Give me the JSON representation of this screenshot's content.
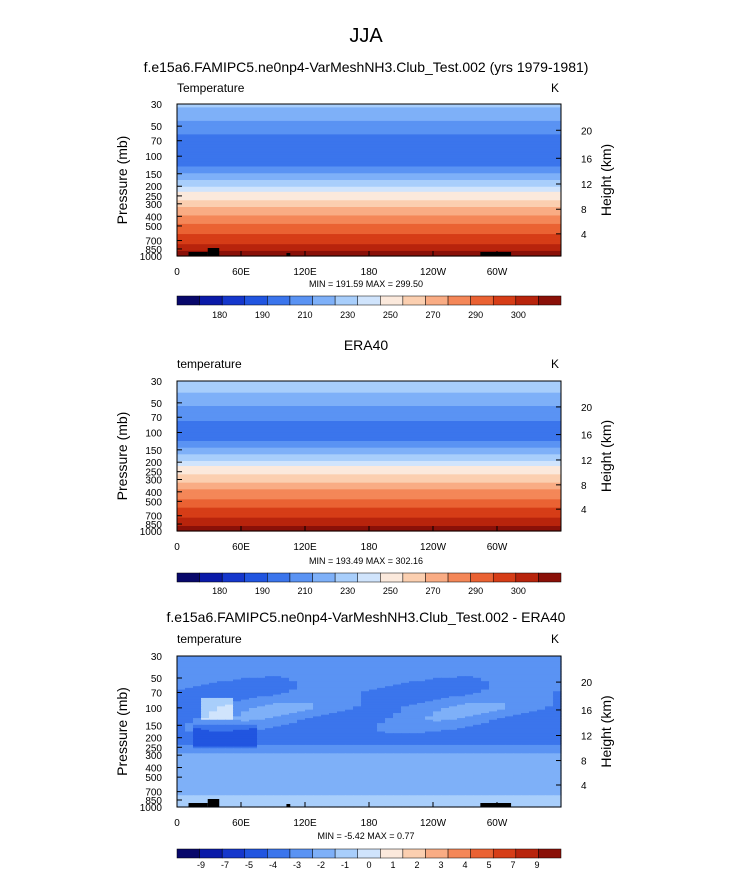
{
  "page": {
    "title": "JJA"
  },
  "colors": {
    "temp_palette": [
      "#08086b",
      "#0a1aa8",
      "#1537cc",
      "#2155e0",
      "#3b75ec",
      "#5a93f3",
      "#7eb0f8",
      "#a8cefb",
      "#d0e4fc",
      "#fbe9dc",
      "#fbcfb0",
      "#f9ac84",
      "#f48758",
      "#ea6233",
      "#d63d17",
      "#b8240c",
      "#8a1008"
    ],
    "diff_palette": [
      "#08086b",
      "#0a1aa8",
      "#1537cc",
      "#2155e0",
      "#3b75ec",
      "#5a93f3",
      "#7eb0f8",
      "#a8cefb",
      "#d0e4fc",
      "#fbe9dc",
      "#fbcfb0",
      "#f9ac84",
      "#f48758",
      "#ea6233",
      "#d63d17",
      "#b8240c",
      "#8a1008"
    ],
    "topography": "#000000"
  },
  "chart_data": [
    {
      "type": "heatmap",
      "title": "f.e15a6.FAMIPC5.ne0np4-VarMeshNH3.Club_Test.002 (yrs 1979-1981)",
      "left_label": "Temperature",
      "units": "K",
      "ylabel": "Pressure (mb)",
      "ylabel_right": "Height (km)",
      "x_ticks": [
        "0",
        "60E",
        "120E",
        "180",
        "120W",
        "60W"
      ],
      "y_ticks": [
        "30",
        "50",
        "70",
        "100",
        "150",
        "200",
        "250",
        "300",
        "400",
        "500",
        "700",
        "850",
        "1000"
      ],
      "y_ticks_right": [
        "20",
        "16",
        "12",
        "8",
        "4"
      ],
      "stats": "MIN = 191.59  MAX = 299.50",
      "colorbar_labels": [
        "180",
        "190",
        "210",
        "230",
        "250",
        "270",
        "290",
        "300"
      ],
      "profile": [
        {
          "p": 30,
          "v": 211
        },
        {
          "p": 40,
          "v": 207
        },
        {
          "p": 50,
          "v": 203
        },
        {
          "p": 60,
          "v": 200
        },
        {
          "p": 70,
          "v": 198
        },
        {
          "p": 85,
          "v": 196
        },
        {
          "p": 100,
          "v": 196
        },
        {
          "p": 120,
          "v": 198
        },
        {
          "p": 150,
          "v": 205
        },
        {
          "p": 200,
          "v": 214
        },
        {
          "p": 250,
          "v": 225
        },
        {
          "p": 300,
          "v": 235
        },
        {
          "p": 400,
          "v": 251
        },
        {
          "p": 500,
          "v": 262
        },
        {
          "p": 600,
          "v": 270
        },
        {
          "p": 700,
          "v": 276
        },
        {
          "p": 850,
          "v": 287
        },
        {
          "p": 925,
          "v": 292
        },
        {
          "p": 1000,
          "v": 298
        }
      ]
    },
    {
      "type": "heatmap",
      "title": "ERA40",
      "left_label": "temperature",
      "units": "K",
      "ylabel": "Pressure (mb)",
      "ylabel_right": "Height (km)",
      "x_ticks": [
        "0",
        "60E",
        "120E",
        "180",
        "120W",
        "60W"
      ],
      "y_ticks": [
        "30",
        "50",
        "70",
        "100",
        "150",
        "200",
        "250",
        "300",
        "400",
        "500",
        "700",
        "850",
        "1000"
      ],
      "y_ticks_right": [
        "20",
        "16",
        "12",
        "8",
        "4"
      ],
      "stats": "MIN = 193.49  MAX = 302.16",
      "colorbar_labels": [
        "180",
        "190",
        "210",
        "230",
        "250",
        "270",
        "290",
        "300"
      ],
      "profile": [
        {
          "p": 30,
          "v": 214
        },
        {
          "p": 40,
          "v": 210
        },
        {
          "p": 50,
          "v": 206
        },
        {
          "p": 60,
          "v": 203
        },
        {
          "p": 70,
          "v": 201
        },
        {
          "p": 85,
          "v": 199
        },
        {
          "p": 100,
          "v": 198
        },
        {
          "p": 120,
          "v": 200
        },
        {
          "p": 150,
          "v": 207
        },
        {
          "p": 200,
          "v": 216
        },
        {
          "p": 250,
          "v": 227
        },
        {
          "p": 300,
          "v": 237
        },
        {
          "p": 400,
          "v": 252
        },
        {
          "p": 500,
          "v": 263
        },
        {
          "p": 600,
          "v": 271
        },
        {
          "p": 700,
          "v": 277
        },
        {
          "p": 850,
          "v": 288
        },
        {
          "p": 925,
          "v": 293
        },
        {
          "p": 1000,
          "v": 299
        }
      ]
    },
    {
      "type": "heatmap",
      "title": "f.e15a6.FAMIPC5.ne0np4-VarMeshNH3.Club_Test.002 - ERA40",
      "left_label": "temperature",
      "units": "K",
      "ylabel": "Pressure (mb)",
      "ylabel_right": "Height (km)",
      "x_ticks": [
        "0",
        "60E",
        "120E",
        "180",
        "120W",
        "60W"
      ],
      "y_ticks": [
        "30",
        "50",
        "70",
        "100",
        "150",
        "200",
        "250",
        "300",
        "400",
        "500",
        "700",
        "850",
        "1000"
      ],
      "y_ticks_right": [
        "20",
        "16",
        "12",
        "8",
        "4"
      ],
      "stats": "MIN = -5.42  MAX =  0.77",
      "colorbar_labels": [
        "-9",
        "-7",
        "-5",
        "-4",
        "-3",
        "-2",
        "-1",
        "0",
        "1",
        "2",
        "3",
        "4",
        "5",
        "7",
        "9"
      ],
      "profile": [
        {
          "p": 30,
          "v": -2.5
        },
        {
          "p": 50,
          "v": -2.8
        },
        {
          "p": 70,
          "v": -3.2
        },
        {
          "p": 100,
          "v": -2.4
        },
        {
          "p": 150,
          "v": -3.0
        },
        {
          "p": 200,
          "v": -3.5
        },
        {
          "p": 250,
          "v": -2.8
        },
        {
          "p": 300,
          "v": -1.8
        },
        {
          "p": 400,
          "v": -1.4
        },
        {
          "p": 500,
          "v": -1.3
        },
        {
          "p": 700,
          "v": -1.1
        },
        {
          "p": 850,
          "v": -0.9
        },
        {
          "p": 1000,
          "v": -0.5
        }
      ]
    }
  ]
}
